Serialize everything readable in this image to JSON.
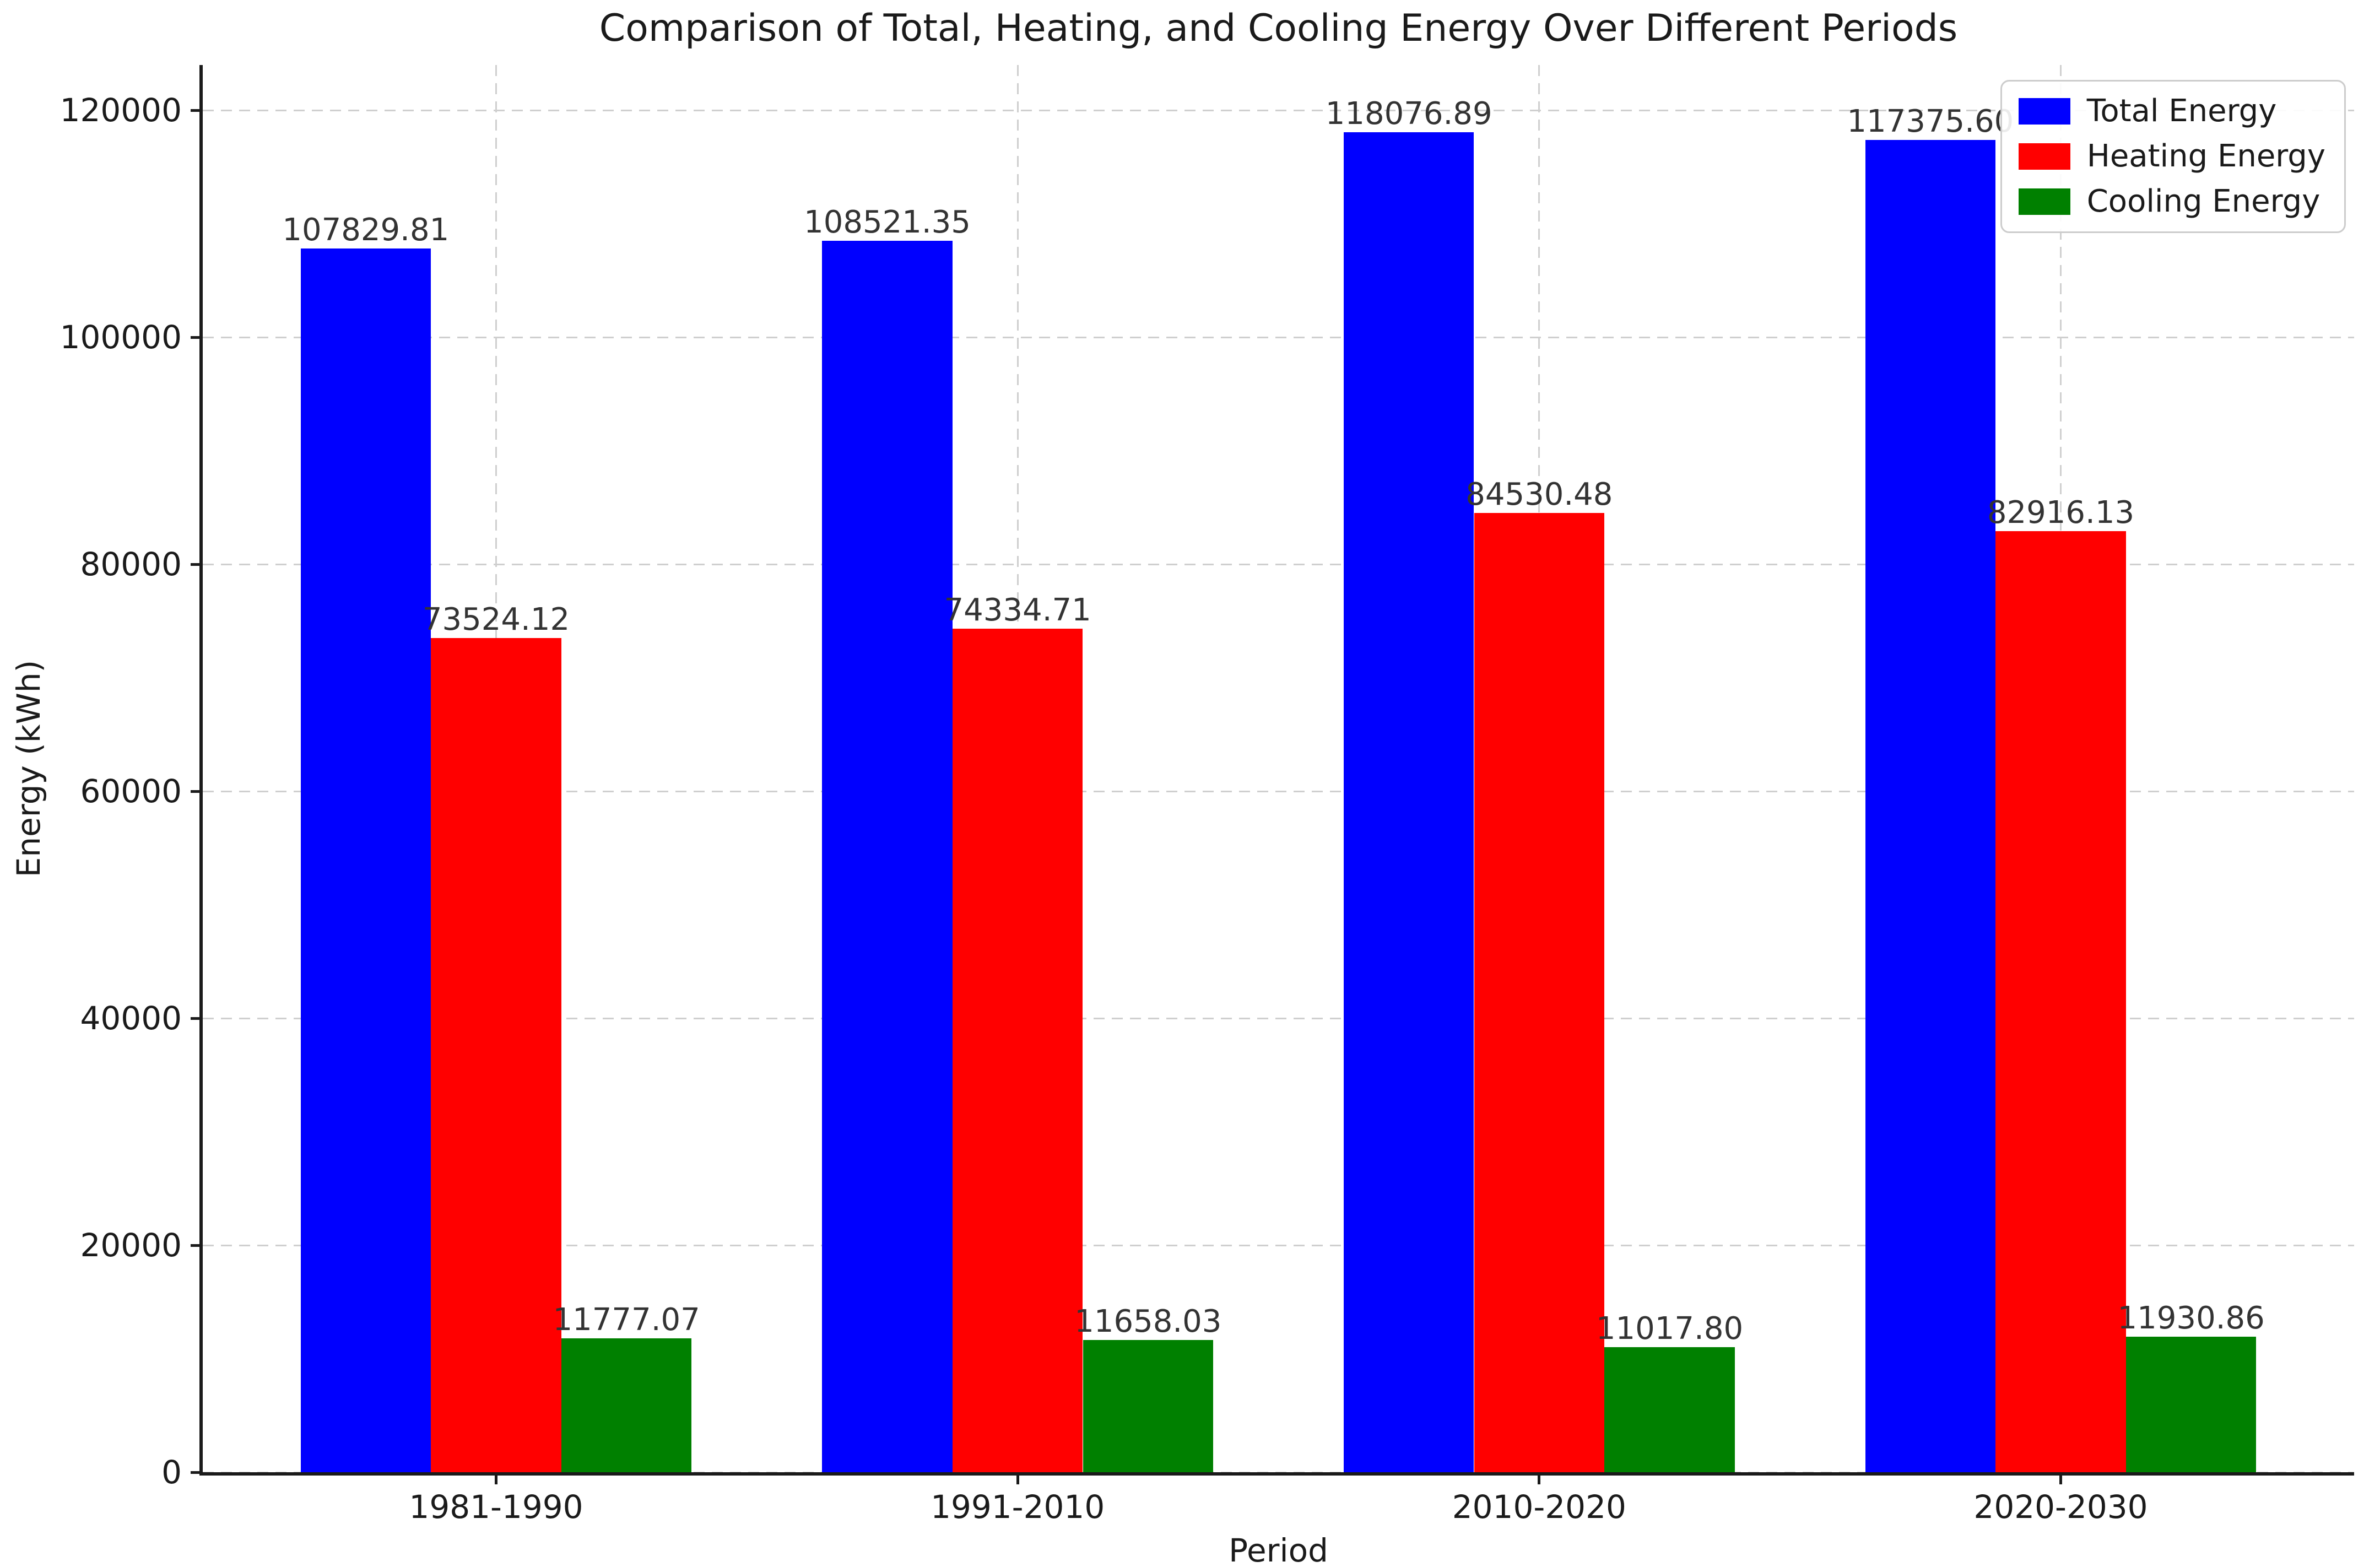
{
  "chart_data": {
    "type": "bar",
    "title": "Comparison of Total, Heating, and Cooling Energy Over Different Periods",
    "xlabel": "Period",
    "ylabel": "Energy (kWh)",
    "categories": [
      "1981-1990",
      "1991-2010",
      "2010-2020",
      "2020-2030"
    ],
    "series": [
      {
        "name": "Total Energy",
        "color": "#0000ff",
        "values": [
          107829.81,
          108521.35,
          118076.89,
          117375.6
        ],
        "labels": [
          "107829.81",
          "108521.35",
          "118076.89",
          "117375.60"
        ]
      },
      {
        "name": "Heating Energy",
        "color": "#ff0000",
        "values": [
          73524.12,
          74334.71,
          84530.48,
          82916.13
        ],
        "labels": [
          "73524.12",
          "74334.71",
          "84530.48",
          "82916.13"
        ]
      },
      {
        "name": "Cooling Energy",
        "color": "#008000",
        "values": [
          11777.07,
          11658.03,
          11017.8,
          11930.86
        ],
        "labels": [
          "11777.07",
          "11658.03",
          "11017.80",
          "11930.86"
        ]
      }
    ],
    "yticks": [
      0,
      20000,
      40000,
      60000,
      80000,
      100000,
      120000
    ],
    "ytick_labels": [
      "0",
      "20000",
      "40000",
      "60000",
      "80000",
      "100000",
      "120000"
    ],
    "ylim": [
      0,
      124000
    ],
    "grid": "dashed",
    "grid_on": true,
    "legend_position": "upper right",
    "legend_entries": [
      "Total Energy",
      "Heating Energy",
      "Cooling Energy"
    ]
  }
}
